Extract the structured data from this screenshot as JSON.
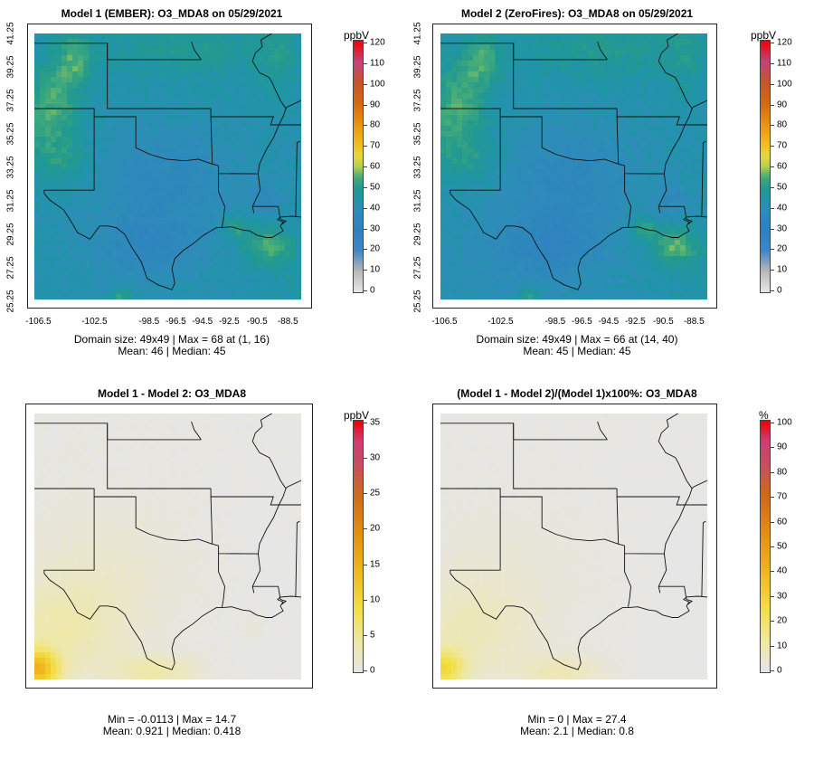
{
  "chart_data": [
    {
      "type": "heatmap",
      "title": "Model 1 (EMBER): O3_MDA8 on 05/29/2021",
      "unit": "ppbV",
      "scale": "concentration",
      "colorbar_ticks": [
        "0",
        "10",
        "20",
        "30",
        "40",
        "50",
        "60",
        "70",
        "80",
        "90",
        "100",
        "110",
        "120"
      ],
      "range": [
        0,
        120
      ],
      "xticks": [
        "-106.5",
        "-102.5",
        "-98.5",
        "-96.5",
        "-94.5",
        "-92.5",
        "-90.5",
        "-88.5"
      ],
      "yticks": [
        "25.25",
        "27.25",
        "29.25",
        "31.25",
        "33.25",
        "35.25",
        "37.25",
        "39.25",
        "41.25"
      ],
      "stats_line1": "Domain size: 49x49 | Max = 68 at (1, 16)",
      "stats_line2": "Mean: 46 |  Median: 45",
      "domain_size": "49x49",
      "max": 68,
      "mean": 46,
      "median": 45
    },
    {
      "type": "heatmap",
      "title": "Model 2 (ZeroFires): O3_MDA8 on 05/29/2021",
      "unit": "ppbV",
      "scale": "concentration",
      "colorbar_ticks": [
        "0",
        "10",
        "20",
        "30",
        "40",
        "50",
        "60",
        "70",
        "80",
        "90",
        "100",
        "110",
        "120"
      ],
      "range": [
        0,
        120
      ],
      "xticks": [
        "-106.5",
        "-102.5",
        "-98.5",
        "-96.5",
        "-94.5",
        "-92.5",
        "-90.5",
        "-88.5"
      ],
      "yticks": [
        "25.25",
        "27.25",
        "29.25",
        "31.25",
        "33.25",
        "35.25",
        "37.25",
        "39.25",
        "41.25"
      ],
      "stats_line1": "Domain size: 49x49 | Max = 66 at (14, 40)",
      "stats_line2": "Mean: 45 |  Median: 45",
      "domain_size": "49x49",
      "max": 66,
      "mean": 45,
      "median": 45
    },
    {
      "type": "heatmap",
      "title": "Model 1 - Model 2: O3_MDA8",
      "unit": "ppbV",
      "scale": "difference",
      "colorbar_ticks": [
        "0",
        "5",
        "10",
        "15",
        "20",
        "25",
        "30",
        "35"
      ],
      "range": [
        0,
        35
      ],
      "xticks": [],
      "yticks": [],
      "stats_line1": "Min = -0.0113 | Max = 14.7",
      "stats_line2": "Mean: 0.921 |  Median: 0.418",
      "min": -0.0113,
      "max": 14.7,
      "mean": 0.921,
      "median": 0.418
    },
    {
      "type": "heatmap",
      "title": "(Model 1 - Model 2)/(Model 1)x100%: O3_MDA8",
      "unit": "%",
      "scale": "difference",
      "colorbar_ticks": [
        "0",
        "10",
        "20",
        "30",
        "40",
        "50",
        "60",
        "70",
        "80",
        "90",
        "100"
      ],
      "range": [
        0,
        100
      ],
      "xticks": [],
      "yticks": [],
      "stats_line1": "Min = 0 | Max = 27.4",
      "stats_line2": "Mean: 2.1 |  Median: 0.8",
      "min": 0,
      "max": 27.4,
      "mean": 2.1,
      "median": 0.8
    }
  ]
}
